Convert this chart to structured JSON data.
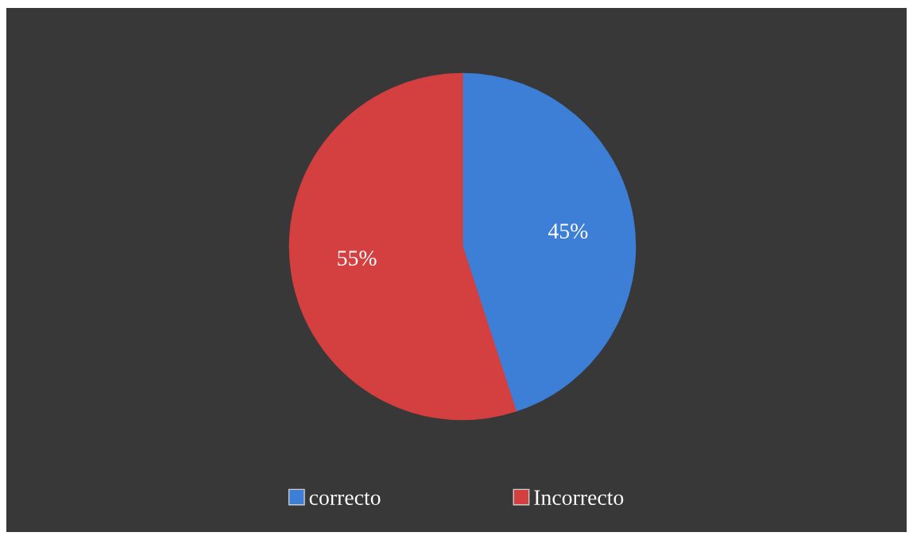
{
  "chart_data": {
    "type": "pie",
    "categories": [
      "correcto",
      "Incorrecto"
    ],
    "values": [
      45,
      55
    ],
    "colors": [
      "#3d7fd6",
      "#d43f3f"
    ],
    "value_labels": [
      "45%",
      "55%"
    ],
    "legend": "bottom"
  }
}
